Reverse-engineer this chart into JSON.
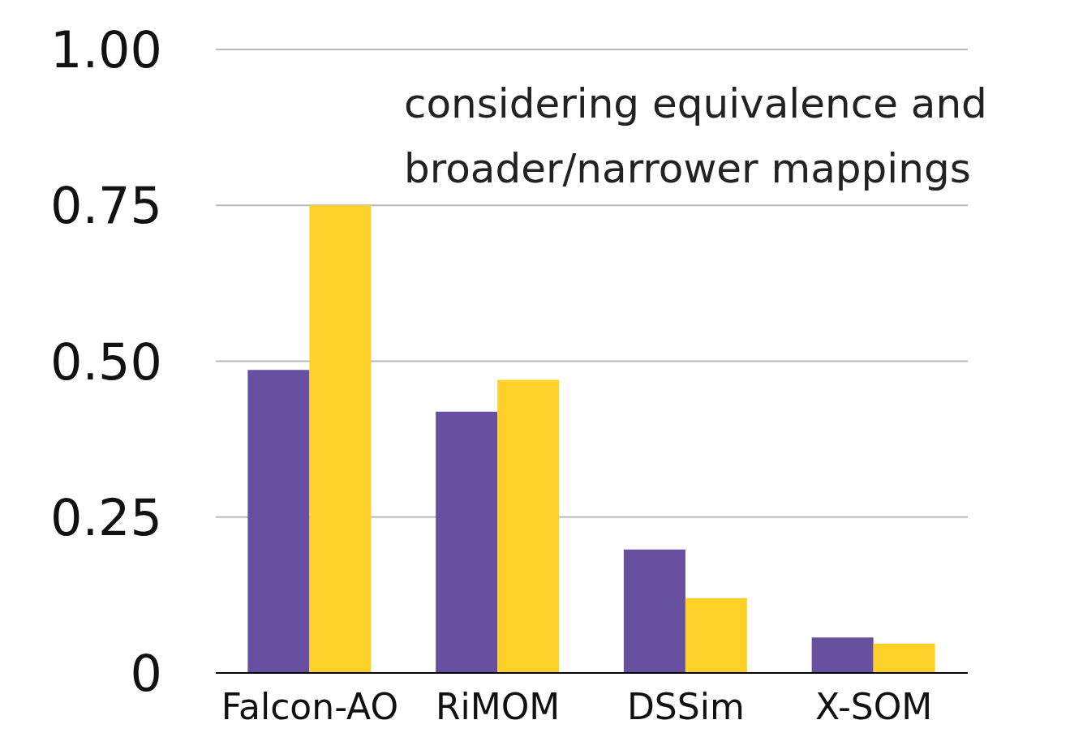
{
  "chart_data": {
    "type": "bar",
    "categories": [
      "Falcon-AO",
      "RiMOM",
      "DSSim",
      "X-SOM"
    ],
    "series": [
      {
        "color": "#6750a0",
        "values": [
          0.486,
          0.419,
          0.198,
          0.057
        ]
      },
      {
        "color": "#fdd128",
        "values": [
          0.75,
          0.47,
          0.12,
          0.047
        ]
      }
    ],
    "ylim": [
      0,
      1
    ],
    "yticks": [
      {
        "value": 0,
        "label": "0"
      },
      {
        "value": 0.25,
        "label": "0.25"
      },
      {
        "value": 0.5,
        "label": "0.50"
      },
      {
        "value": 0.75,
        "label": "0.75"
      },
      {
        "value": 1,
        "label": "1.00"
      }
    ],
    "grid": "y",
    "legend": false,
    "annotations": [
      "considering equivalence and broader/narrower mappings"
    ]
  }
}
